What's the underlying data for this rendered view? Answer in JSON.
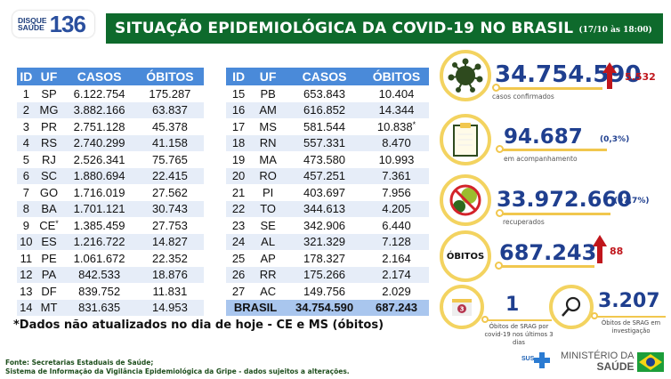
{
  "logo": {
    "line1": "DISQUE",
    "line2": "SAÚDE",
    "number": "136"
  },
  "header": {
    "title": "SITUAÇÃO EPIDEMIOLÓGICA DA COVID-19 NO BRASIL",
    "date": "(17/10 às 18:00)"
  },
  "table": {
    "columns": [
      "ID",
      "UF",
      "CASOS",
      "ÓBITOS"
    ],
    "left": [
      {
        "id": "1",
        "uf": "SP",
        "casos": "6.122.754",
        "obitos": "175.287"
      },
      {
        "id": "2",
        "uf": "MG",
        "casos": "3.882.166",
        "obitos": "63.837"
      },
      {
        "id": "3",
        "uf": "PR",
        "casos": "2.751.128",
        "obitos": "45.378"
      },
      {
        "id": "4",
        "uf": "RS",
        "casos": "2.740.299",
        "obitos": "41.158"
      },
      {
        "id": "5",
        "uf": "RJ",
        "casos": "2.526.341",
        "obitos": "75.765"
      },
      {
        "id": "6",
        "uf": "SC",
        "casos": "1.880.694",
        "obitos": "22.415"
      },
      {
        "id": "7",
        "uf": "GO",
        "casos": "1.716.019",
        "obitos": "27.562"
      },
      {
        "id": "8",
        "uf": "BA",
        "casos": "1.701.121",
        "obitos": "30.743"
      },
      {
        "id": "9",
        "uf": "CE",
        "uf_mark": "*",
        "casos": "1.385.459",
        "obitos": "27.753"
      },
      {
        "id": "10",
        "uf": "ES",
        "casos": "1.216.722",
        "obitos": "14.827"
      },
      {
        "id": "11",
        "uf": "PE",
        "casos": "1.061.672",
        "obitos": "22.352"
      },
      {
        "id": "12",
        "uf": "PA",
        "casos": "842.533",
        "obitos": "18.876"
      },
      {
        "id": "13",
        "uf": "DF",
        "casos": "839.752",
        "obitos": "11.831"
      },
      {
        "id": "14",
        "uf": "MT",
        "casos": "831.635",
        "obitos": "14.953"
      }
    ],
    "right": [
      {
        "id": "15",
        "uf": "PB",
        "casos": "653.843",
        "obitos": "10.404"
      },
      {
        "id": "16",
        "uf": "AM",
        "casos": "616.852",
        "obitos": "14.344"
      },
      {
        "id": "17",
        "uf": "MS",
        "casos": "581.544",
        "obitos": "10.838",
        "obitos_mark": "*"
      },
      {
        "id": "18",
        "uf": "RN",
        "casos": "557.331",
        "obitos": "8.470"
      },
      {
        "id": "19",
        "uf": "MA",
        "casos": "473.580",
        "obitos": "10.993"
      },
      {
        "id": "20",
        "uf": "RO",
        "casos": "457.251",
        "obitos": "7.361"
      },
      {
        "id": "21",
        "uf": "PI",
        "casos": "403.697",
        "obitos": "7.956"
      },
      {
        "id": "22",
        "uf": "TO",
        "casos": "344.613",
        "obitos": "4.205"
      },
      {
        "id": "23",
        "uf": "SE",
        "casos": "342.906",
        "obitos": "6.440"
      },
      {
        "id": "24",
        "uf": "AL",
        "casos": "321.329",
        "obitos": "7.128"
      },
      {
        "id": "25",
        "uf": "AP",
        "casos": "178.327",
        "obitos": "2.164"
      },
      {
        "id": "26",
        "uf": "RR",
        "casos": "175.266",
        "obitos": "2.174"
      },
      {
        "id": "27",
        "uf": "AC",
        "casos": "149.756",
        "obitos": "2.029"
      }
    ],
    "total": {
      "label": "BRASIL",
      "casos": "34.754.590",
      "obitos": "687.243"
    }
  },
  "note": "*Dados não atualizados no dia de hoje - CE e MS (óbitos)",
  "source": {
    "line1": "Fonte: Secretarias Estaduais de Saúde;",
    "line2": "Sistema de Informação da Vigilância Epidemiológica da Gripe - dados sujeitos a alterações."
  },
  "stats": {
    "confirmed": {
      "value": "34.754.590",
      "delta": "5.532",
      "label": "casos confirmados"
    },
    "monitoring": {
      "value": "94.687",
      "pct": "(0,3%)",
      "label": "em acompanhamento"
    },
    "recovered": {
      "value": "33.972.660",
      "pct": "(97,7%)",
      "label": "recuperados"
    },
    "deaths": {
      "badge": "ÓBITOS",
      "value": "687.243",
      "delta": "88"
    },
    "srag_3days": {
      "value": "1",
      "label": "Óbitos de SRAG por covid-19 nos últimos 3 dias",
      "calendar_num": "3"
    },
    "srag_investigation": {
      "value": "3.207",
      "label": "Óbitos de SRAG em investigação"
    }
  },
  "footer": {
    "sus": "SUS",
    "ministry_line1": "MINISTÉRIO DA",
    "ministry_line2": "SAÚDE"
  },
  "colors": {
    "title_green": "#0e6a2c",
    "table_header": "#4a8ad9",
    "number_blue": "#1f3f8f",
    "delta_red": "#c0161c",
    "ring_yellow": "#f3d360"
  }
}
